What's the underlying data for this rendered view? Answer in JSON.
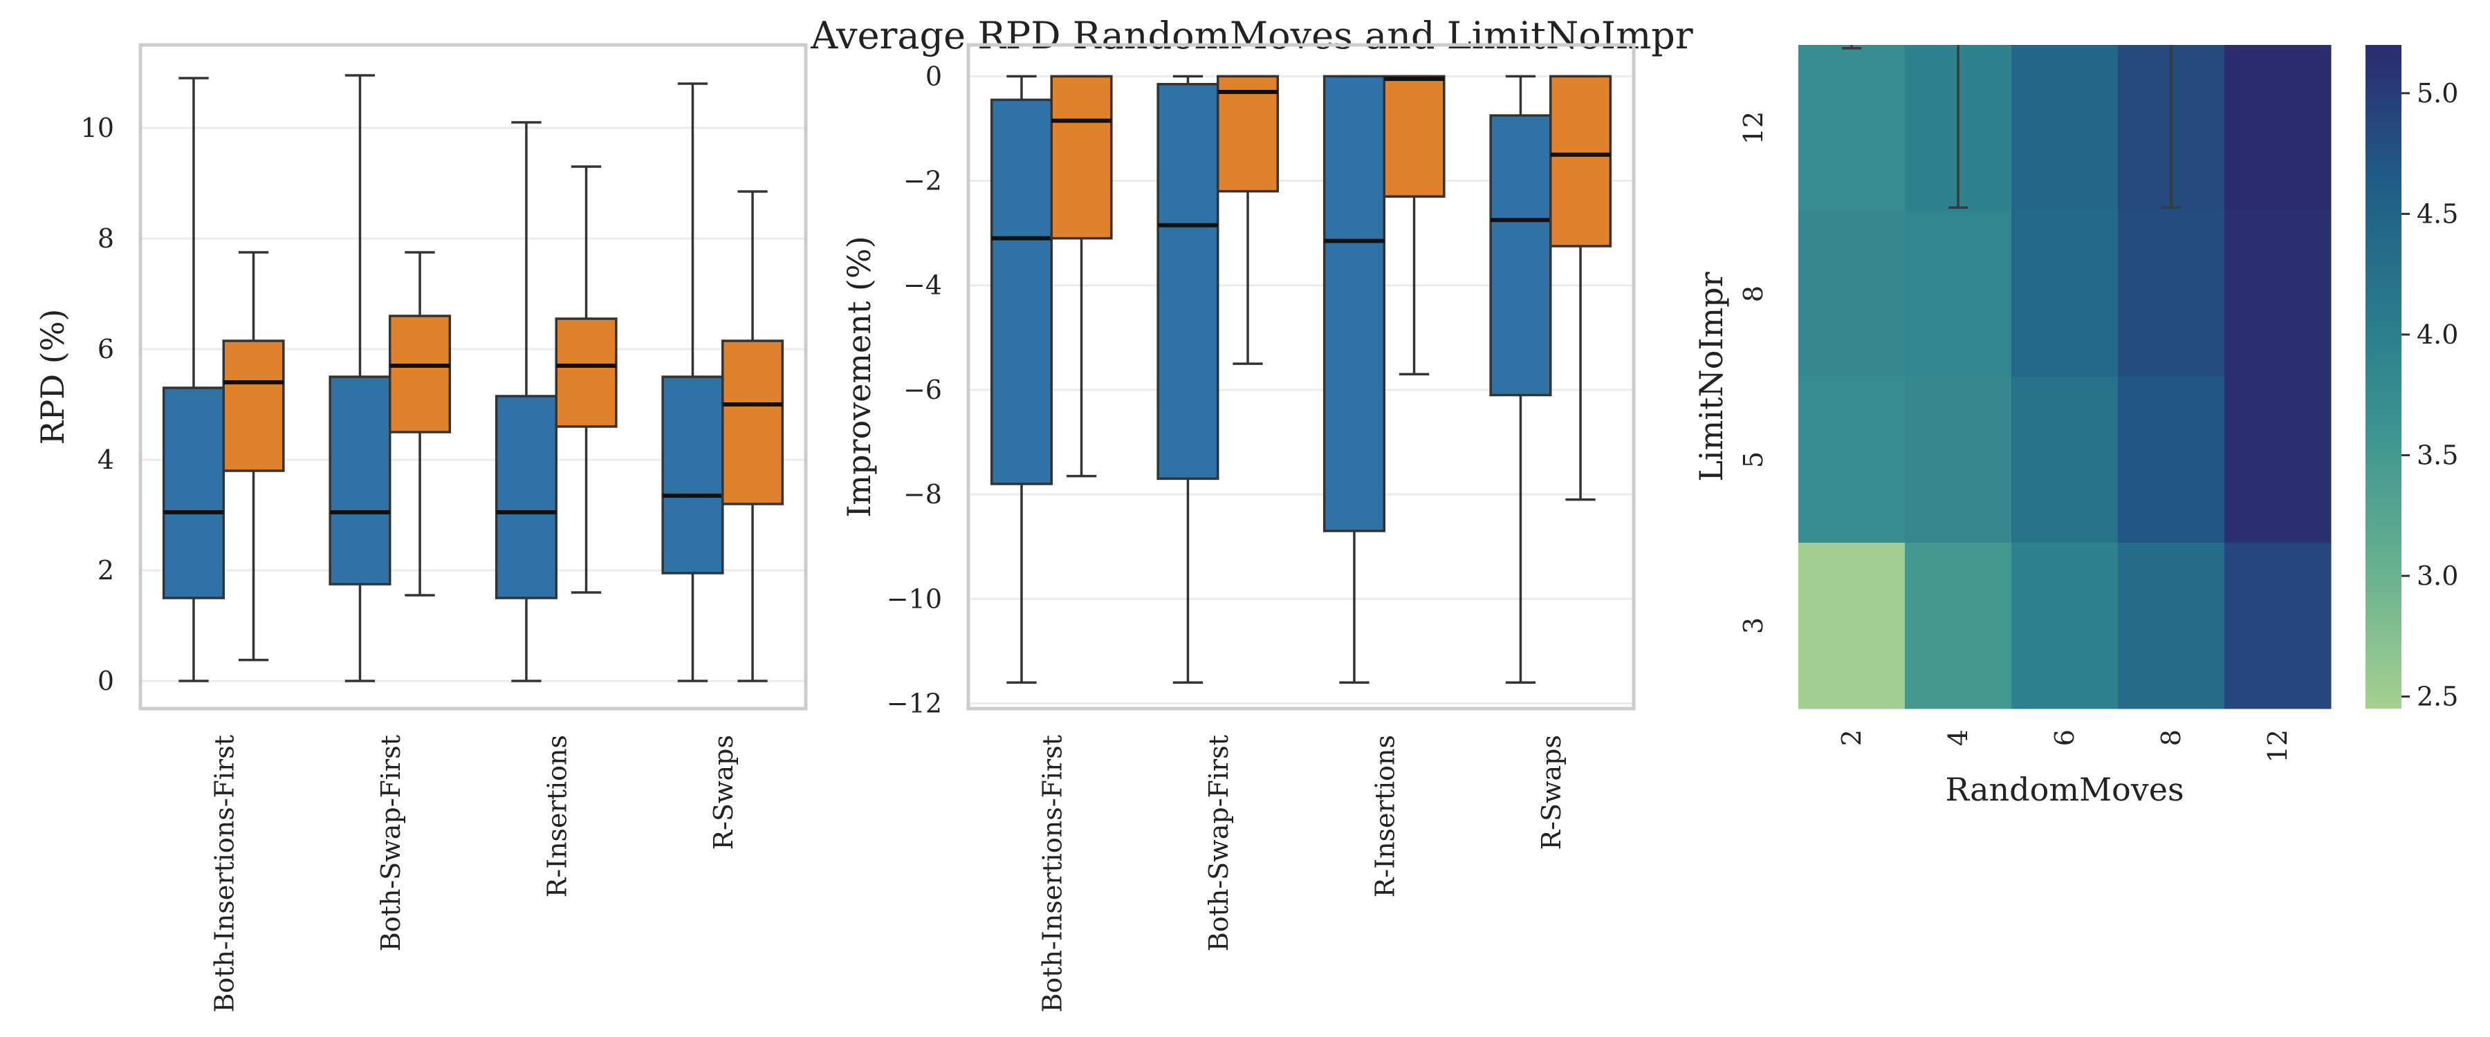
{
  "suptitle": "Average RPD    RandomMoves and LimitNoImpr",
  "colors": {
    "series_a": "#2f72a6",
    "series_b": "#e0812c",
    "box_edge": "#333333",
    "whisker": "#333333",
    "median": "#111111",
    "grid": "#ebebeb",
    "spine": "#cccccc"
  },
  "chart_data": [
    {
      "type": "box",
      "xlabel": "",
      "ylabel": "RPD (%)",
      "ylim": [
        -0.5,
        11.5
      ],
      "yticks": [
        0,
        2,
        4,
        6,
        8,
        10
      ],
      "grid": true,
      "categories": [
        "Both-Insertions-First",
        "Both-Swap-First",
        "R-Insertions",
        "R-Swaps"
      ],
      "series": [
        {
          "color_key": "series_a",
          "boxes": [
            {
              "whislo": 0.0,
              "q1": 1.5,
              "median": 3.05,
              "q3": 5.3,
              "whishi": 10.9
            },
            {
              "whislo": 0.0,
              "q1": 1.75,
              "median": 3.05,
              "q3": 5.5,
              "whishi": 10.95
            },
            {
              "whislo": 0.0,
              "q1": 1.5,
              "median": 3.05,
              "q3": 5.15,
              "whishi": 10.1
            },
            {
              "whislo": 0.0,
              "q1": 1.95,
              "median": 3.35,
              "q3": 5.5,
              "whishi": 10.8
            }
          ]
        },
        {
          "color_key": "series_b",
          "boxes": [
            {
              "whislo": 0.38,
              "q1": 3.8,
              "median": 5.4,
              "q3": 6.15,
              "whishi": 7.75
            },
            {
              "whislo": 1.55,
              "q1": 4.5,
              "median": 5.7,
              "q3": 6.6,
              "whishi": 7.75
            },
            {
              "whislo": 1.6,
              "q1": 4.6,
              "median": 5.7,
              "q3": 6.55,
              "whishi": 9.3
            },
            {
              "whislo": 0.0,
              "q1": 3.2,
              "median": 5.0,
              "q3": 6.15,
              "whishi": 8.85
            }
          ]
        }
      ]
    },
    {
      "type": "box",
      "xlabel": "",
      "ylabel": "Improvement (%)",
      "ylim": [
        -12.1,
        0.6
      ],
      "yticks": [
        0,
        -2,
        -4,
        -6,
        -8,
        -10,
        -12
      ],
      "grid": true,
      "categories": [
        "Both-Insertions-First",
        "Both-Swap-First",
        "R-Insertions",
        "R-Swaps"
      ],
      "series": [
        {
          "color_key": "series_a",
          "boxes": [
            {
              "whislo": -11.6,
              "q1": -7.8,
              "median": -3.1,
              "q3": -0.45,
              "whishi": 0.0
            },
            {
              "whislo": -11.6,
              "q1": -7.7,
              "median": -2.85,
              "q3": -0.15,
              "whishi": 0.0
            },
            {
              "whislo": -11.6,
              "q1": -8.7,
              "median": -3.15,
              "q3": 0.0,
              "whishi": 0.0
            },
            {
              "whislo": -11.6,
              "q1": -6.1,
              "median": -2.75,
              "q3": -0.75,
              "whishi": 0.0
            }
          ]
        },
        {
          "color_key": "series_b",
          "boxes": [
            {
              "whislo": -7.65,
              "q1": -3.1,
              "median": -0.85,
              "q3": 0.0,
              "whishi": 0.0
            },
            {
              "whislo": -5.5,
              "q1": -2.2,
              "median": -0.3,
              "q3": 0.0,
              "whishi": 0.0
            },
            {
              "whislo": -5.7,
              "q1": -2.3,
              "median": -0.05,
              "q3": 0.0,
              "whishi": 0.0
            },
            {
              "whislo": -8.1,
              "q1": -3.25,
              "median": -1.5,
              "q3": 0.0,
              "whishi": 0.0
            }
          ]
        }
      ]
    },
    {
      "type": "heatmap",
      "xlabel": "RandomMoves",
      "ylabel": "LimitNoImpr",
      "x": [
        "2",
        "4",
        "6",
        "8",
        "12"
      ],
      "y": [
        "12",
        "8",
        "5",
        "3"
      ],
      "values": [
        [
          3.75,
          3.95,
          4.45,
          4.85,
          5.2
        ],
        [
          3.8,
          3.85,
          4.4,
          4.8,
          5.15
        ],
        [
          3.75,
          3.8,
          4.25,
          4.7,
          5.15
        ],
        [
          2.5,
          3.5,
          3.95,
          4.35,
          4.9
        ]
      ],
      "colorbar": {
        "ticks": [
          5.0,
          4.5,
          4.0,
          3.5,
          3.0,
          2.5
        ],
        "min": 2.45,
        "max": 5.2,
        "colormap": "crest"
      },
      "overlay_lines": [
        {
          "column": 0,
          "from_value": 12,
          "to_value": 12
        },
        {
          "column": 1,
          "from_value": 12,
          "to_value": 12
        },
        {
          "column": 3,
          "from_value": 12,
          "to_value": 12
        }
      ]
    }
  ]
}
